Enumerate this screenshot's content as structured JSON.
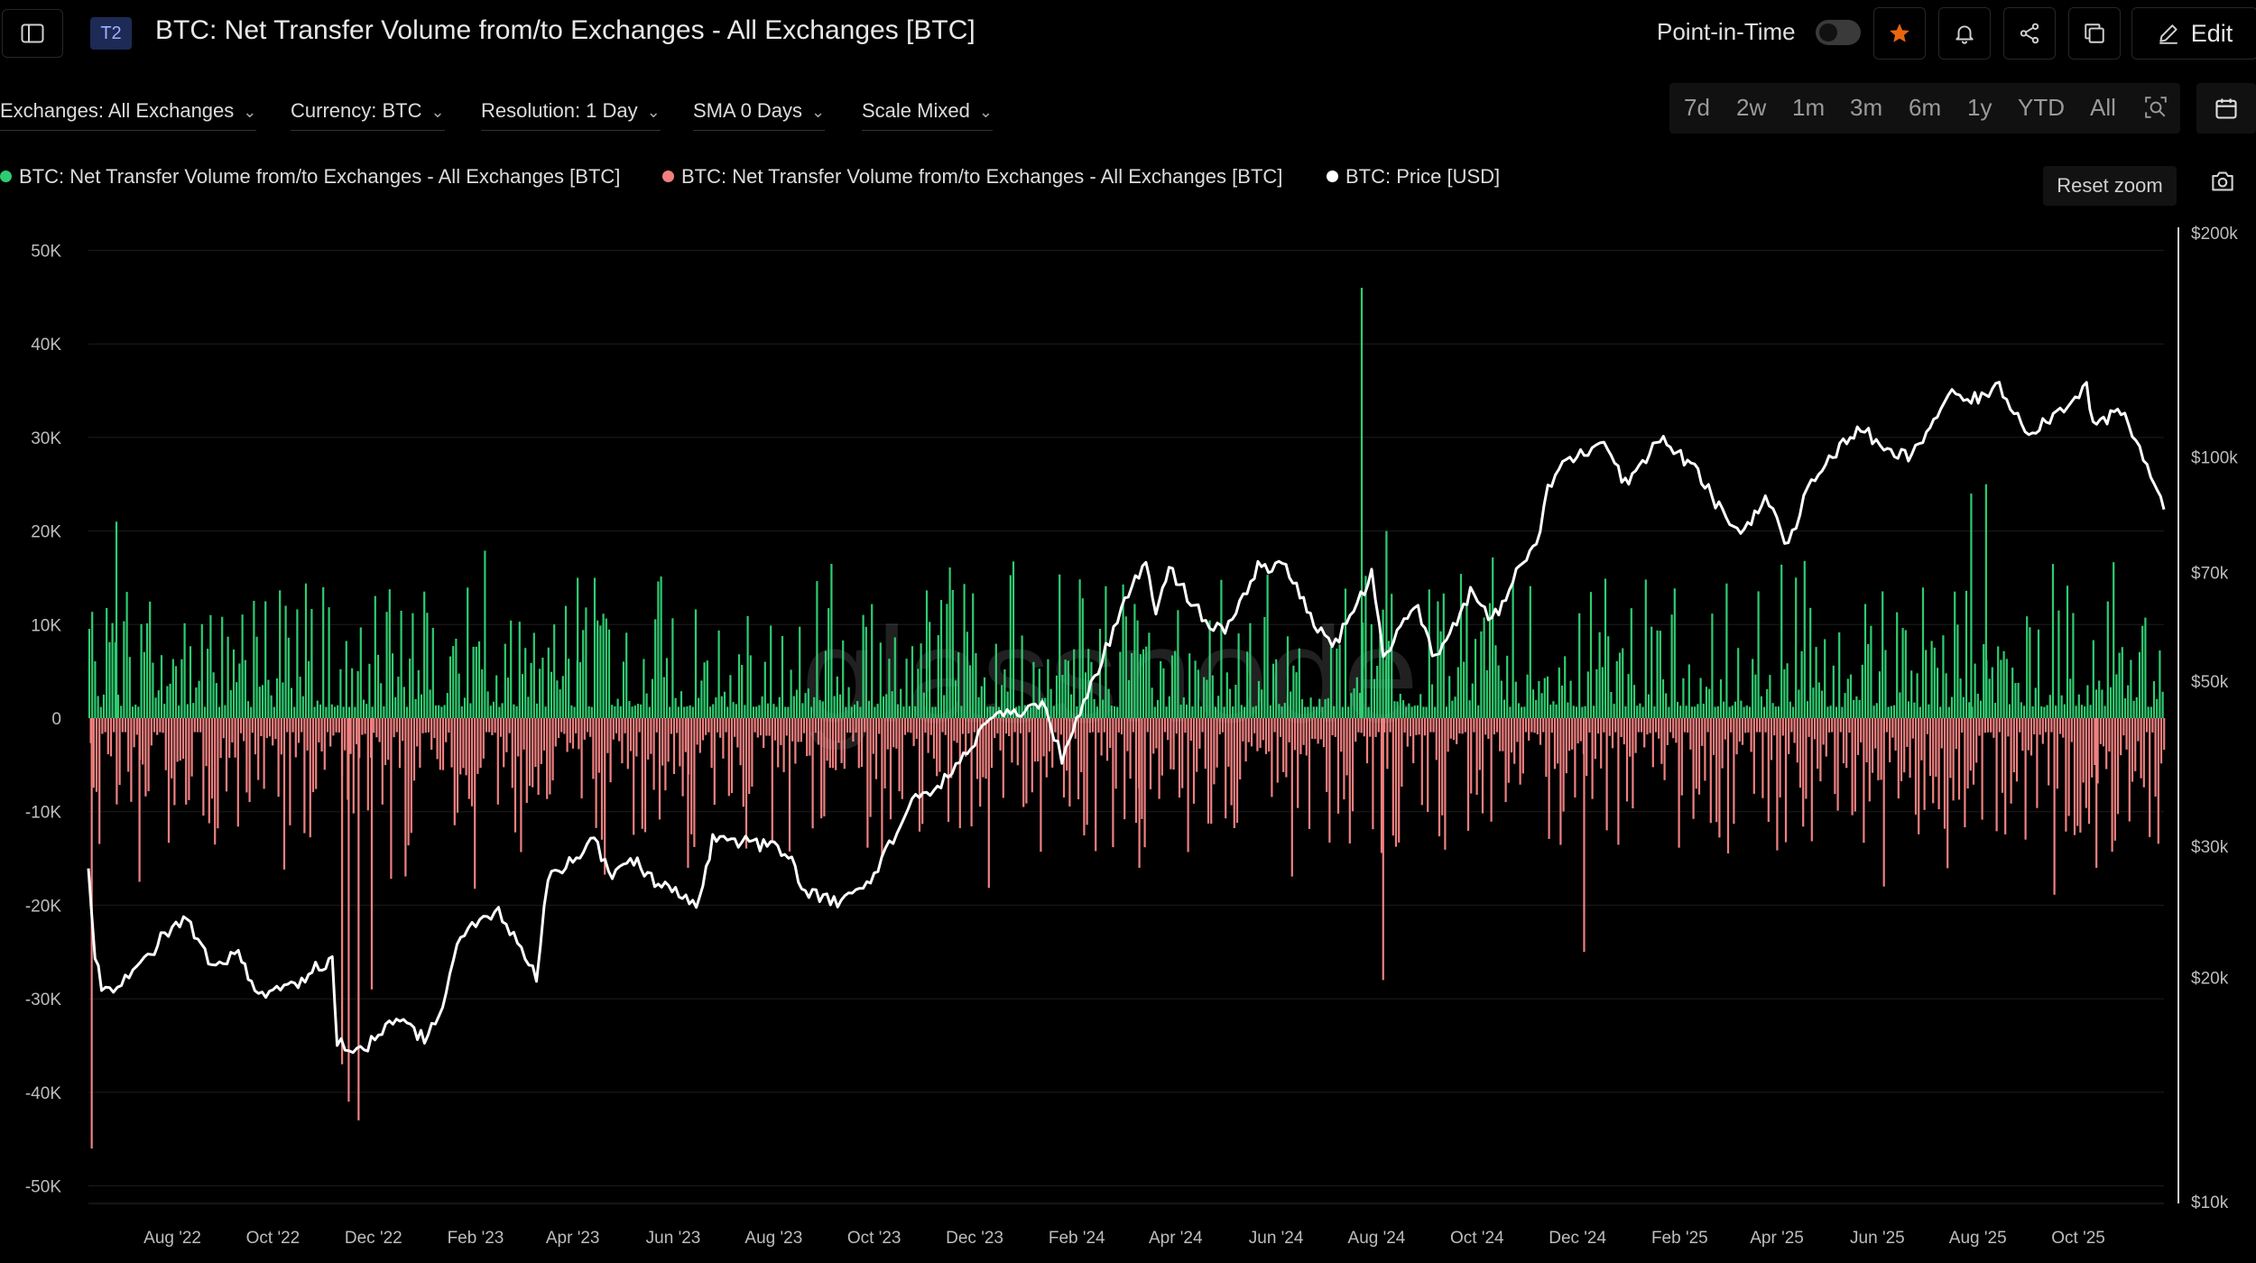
{
  "header": {
    "badge": "T2",
    "title": "BTC: Net Transfer Volume from/to Exchanges - All Exchanges [BTC]",
    "point_in_time_label": "Point-in-Time",
    "edit_label": "Edit"
  },
  "filters": [
    {
      "label": "Exchanges: All Exchanges"
    },
    {
      "label": "Currency: BTC"
    },
    {
      "label": "Resolution: 1 Day"
    },
    {
      "label": "SMA 0 Days"
    },
    {
      "label": "Scale Mixed"
    }
  ],
  "ranges": [
    "7d",
    "2w",
    "1m",
    "3m",
    "6m",
    "1y",
    "YTD",
    "All"
  ],
  "reset_zoom_label": "Reset zoom",
  "watermark": "glassnode",
  "colors": {
    "inflow_positive": "#2ecc71",
    "outflow_negative": "#f08080",
    "price": "#ffffff",
    "accent_star": "#e8650f"
  },
  "chart_data": {
    "type": "bar",
    "title": "BTC: Net Transfer Volume from/to Exchanges - All Exchanges [BTC]",
    "legend": [
      "BTC: Net Transfer Volume from/to Exchanges - All Exchanges [BTC]",
      "BTC: Net Transfer Volume from/to Exchanges - All Exchanges [BTC]",
      "BTC: Price [USD]"
    ],
    "x_ticks": [
      "Aug '22",
      "Oct '22",
      "Dec '22",
      "Feb '23",
      "Apr '23",
      "Jun '23",
      "Aug '23",
      "Oct '23",
      "Dec '23",
      "Feb '24",
      "Apr '24",
      "Jun '24",
      "Aug '24",
      "Oct '24",
      "Dec '24",
      "Feb '25",
      "Apr '25",
      "Jun '25",
      "Aug '25",
      "Oct '25"
    ],
    "x_range": [
      "2022-06-11",
      "2025-11-22"
    ],
    "y_left_ticks": [
      "50K",
      "40K",
      "30K",
      "20K",
      "10K",
      "0",
      "-10K",
      "-20K",
      "-30K",
      "-40K",
      "-50K"
    ],
    "y_left_range": [
      -52000,
      50000
    ],
    "y_right_ticks": [
      "$200k",
      "$100k",
      "$70k",
      "$50k",
      "$30k",
      "$20k",
      "$10k"
    ],
    "y_right_scale": "log",
    "y_right_range": [
      10000,
      200000
    ],
    "net_flow_spikes": [
      {
        "date": "2022-06-13",
        "value": -46000
      },
      {
        "date": "2022-06-28",
        "value": 21000
      },
      {
        "date": "2022-07-12",
        "value": -17500
      },
      {
        "date": "2022-11-12",
        "value": -37000
      },
      {
        "date": "2022-11-16",
        "value": -41000
      },
      {
        "date": "2022-11-22",
        "value": -43000
      },
      {
        "date": "2022-11-30",
        "value": -29000
      },
      {
        "date": "2023-04-04",
        "value": 15000
      },
      {
        "date": "2023-06-10",
        "value": -16000
      },
      {
        "date": "2024-03-10",
        "value": -16000
      },
      {
        "date": "2024-07-23",
        "value": 46000
      },
      {
        "date": "2024-08-05",
        "value": -28000
      },
      {
        "date": "2024-08-07",
        "value": 20000
      },
      {
        "date": "2024-12-05",
        "value": -25000
      },
      {
        "date": "2025-06-05",
        "value": -18000
      },
      {
        "date": "2025-07-28",
        "value": 24000
      },
      {
        "date": "2025-08-06",
        "value": 25000
      },
      {
        "date": "2025-10-12",
        "value": -16000
      }
    ],
    "price_series": [
      [
        "2022-06-11",
        28000
      ],
      [
        "2022-06-15",
        21500
      ],
      [
        "2022-06-19",
        19500
      ],
      [
        "2022-07-01",
        19500
      ],
      [
        "2022-07-15",
        21000
      ],
      [
        "2022-07-25",
        22500
      ],
      [
        "2022-08-10",
        24000
      ],
      [
        "2022-08-25",
        20500
      ],
      [
        "2022-09-10",
        21500
      ],
      [
        "2022-09-20",
        19000
      ],
      [
        "2022-10-10",
        19200
      ],
      [
        "2022-10-29",
        20800
      ],
      [
        "2022-11-06",
        21000
      ],
      [
        "2022-11-09",
        16500
      ],
      [
        "2022-11-21",
        15800
      ],
      [
        "2022-12-15",
        17500
      ],
      [
        "2023-01-01",
        16600
      ],
      [
        "2023-01-12",
        18000
      ],
      [
        "2023-01-23",
        23000
      ],
      [
        "2023-02-15",
        24500
      ],
      [
        "2023-03-10",
        20000
      ],
      [
        "2023-03-17",
        27000
      ],
      [
        "2023-04-14",
        30500
      ],
      [
        "2023-04-25",
        27500
      ],
      [
        "2023-05-06",
        29000
      ],
      [
        "2023-05-25",
        26500
      ],
      [
        "2023-06-15",
        25000
      ],
      [
        "2023-06-25",
        30500
      ],
      [
        "2023-07-15",
        30500
      ],
      [
        "2023-08-10",
        29500
      ],
      [
        "2023-08-18",
        26000
      ],
      [
        "2023-09-11",
        25200
      ],
      [
        "2023-10-01",
        27500
      ],
      [
        "2023-10-24",
        34500
      ],
      [
        "2023-11-15",
        37000
      ],
      [
        "2023-12-08",
        44000
      ],
      [
        "2024-01-11",
        46500
      ],
      [
        "2024-01-23",
        39500
      ],
      [
        "2024-02-14",
        52000
      ],
      [
        "2024-02-28",
        62000
      ],
      [
        "2024-03-14",
        73000
      ],
      [
        "2024-03-20",
        62500
      ],
      [
        "2024-03-28",
        71000
      ],
      [
        "2024-04-17",
        61000
      ],
      [
        "2024-05-01",
        58000
      ],
      [
        "2024-05-21",
        71000
      ],
      [
        "2024-06-07",
        71000
      ],
      [
        "2024-06-24",
        60000
      ],
      [
        "2024-07-05",
        55000
      ],
      [
        "2024-07-29",
        69500
      ],
      [
        "2024-08-05",
        54000
      ],
      [
        "2024-08-24",
        64000
      ],
      [
        "2024-09-06",
        53500
      ],
      [
        "2024-09-27",
        66000
      ],
      [
        "2024-10-10",
        60000
      ],
      [
        "2024-10-29",
        72500
      ],
      [
        "2024-11-06",
        76000
      ],
      [
        "2024-11-13",
        90000
      ],
      [
        "2024-11-22",
        98500
      ],
      [
        "2024-12-05",
        101000
      ],
      [
        "2024-12-17",
        106500
      ],
      [
        "2024-12-30",
        92000
      ],
      [
        "2025-01-20",
        106000
      ],
      [
        "2025-02-10",
        96500
      ],
      [
        "2025-02-27",
        84000
      ],
      [
        "2025-03-10",
        79000
      ],
      [
        "2025-03-25",
        88000
      ],
      [
        "2025-04-08",
        76000
      ],
      [
        "2025-04-22",
        93500
      ],
      [
        "2025-05-22",
        110000
      ],
      [
        "2025-06-05",
        101500
      ],
      [
        "2025-06-22",
        100000
      ],
      [
        "2025-07-14",
        121000
      ],
      [
        "2025-07-28",
        119000
      ],
      [
        "2025-08-14",
        124000
      ],
      [
        "2025-09-01",
        108000
      ],
      [
        "2025-09-20",
        115500
      ],
      [
        "2025-10-06",
        125000
      ],
      [
        "2025-10-10",
        110000
      ],
      [
        "2025-10-27",
        115000
      ],
      [
        "2025-11-14",
        95000
      ],
      [
        "2025-11-22",
        85000
      ]
    ]
  }
}
